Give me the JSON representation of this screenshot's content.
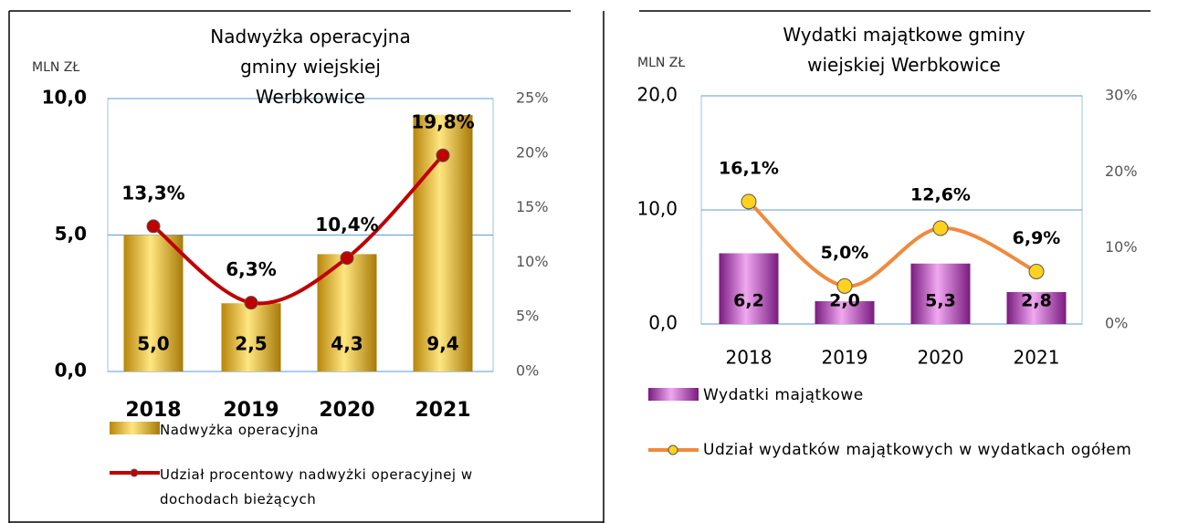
{
  "chart_data": [
    {
      "type": "bar",
      "title": "Nadwyżka operacyjna gminy wiejskiej Werbkowice",
      "y_label": "MLN ZŁ",
      "categories": [
        "2018",
        "2019",
        "2020",
        "2021"
      ],
      "ylim": [
        0,
        10
      ],
      "yticks": [
        {
          "value": 0,
          "label": "0,0"
        },
        {
          "value": 5,
          "label": "5,0"
        },
        {
          "value": 10,
          "label": "10,0"
        }
      ],
      "y2lim": [
        0,
        25
      ],
      "y2ticks": [
        {
          "value": 0,
          "label": "0%"
        },
        {
          "value": 5,
          "label": "5%"
        },
        {
          "value": 10,
          "label": "10%"
        },
        {
          "value": 15,
          "label": "15%"
        },
        {
          "value": 20,
          "label": "20%"
        },
        {
          "value": 25,
          "label": "25%"
        }
      ],
      "grid": true,
      "series": [
        {
          "name": "Nadwyżka operacyjna",
          "type": "bar",
          "color": "#d4a017",
          "values": [
            5.0,
            2.5,
            4.3,
            9.4
          ],
          "value_labels": [
            "5,0",
            "2,5",
            "4,3",
            "9,4"
          ]
        },
        {
          "name": "Udział procentowy nadwyżki operacyjnej w dochodach bieżących",
          "type": "line",
          "axis": "y2",
          "color": "#c00000",
          "marker_color": "#c00000",
          "values": [
            13.3,
            6.3,
            10.4,
            19.8
          ],
          "value_labels": [
            "13,3%",
            "6,3%",
            "10,4%",
            "19,8%"
          ]
        }
      ]
    },
    {
      "type": "bar",
      "title": "Wydatki majątkowe gminy wiejskiej Werbkowice",
      "y_label": "MLN ZŁ",
      "categories": [
        "2018",
        "2019",
        "2020",
        "2021"
      ],
      "ylim": [
        0,
        20
      ],
      "yticks": [
        {
          "value": 0,
          "label": "0,0"
        },
        {
          "value": 10,
          "label": "10,0"
        },
        {
          "value": 20,
          "label": "20,0"
        }
      ],
      "y2lim": [
        0,
        30
      ],
      "y2ticks": [
        {
          "value": 0,
          "label": "0%"
        },
        {
          "value": 10,
          "label": "10%"
        },
        {
          "value": 20,
          "label": "20%"
        },
        {
          "value": 30,
          "label": "30%"
        }
      ],
      "grid": true,
      "series": [
        {
          "name": "Wydatki majątkowe",
          "type": "bar",
          "color": "#a030a8",
          "values": [
            6.2,
            2.0,
            5.3,
            2.8
          ],
          "value_labels": [
            "6,2",
            "2,0",
            "5,3",
            "2,8"
          ]
        },
        {
          "name": "Udział wydatków majątkowych w wydatkach ogółem",
          "type": "line",
          "axis": "y2",
          "color": "#f08a3c",
          "marker_color": "#ffd21f",
          "values": [
            16.1,
            5.0,
            12.6,
            6.9
          ],
          "value_labels": [
            "16,1%",
            "5,0%",
            "12,6%",
            "6,9%"
          ]
        }
      ]
    }
  ]
}
